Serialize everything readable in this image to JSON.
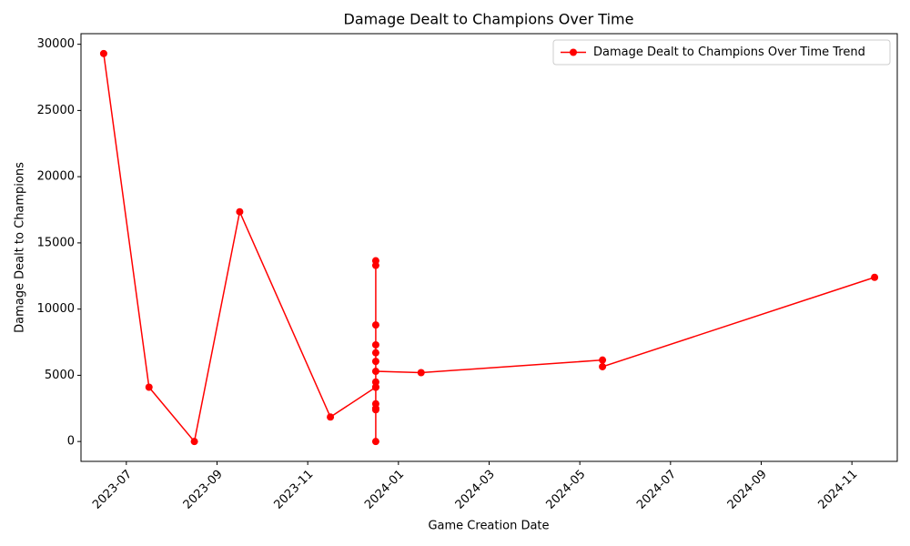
{
  "chart_data": {
    "type": "line",
    "title": "Damage Dealt to Champions Over Time",
    "x_label": "Game Creation Date",
    "y_label": "Damage Dealt to Champions",
    "x": [
      "2023-06",
      "2023-07",
      "2023-08",
      "2023-09",
      "2023-11",
      "2023-12",
      "2023-12",
      "2023-12",
      "2023-12",
      "2023-12",
      "2023-12",
      "2023-12",
      "2023-12",
      "2023-12",
      "2023-12",
      "2023-12",
      "2023-12",
      "2023-12",
      "2023-12",
      "2024-01",
      "2024-05",
      "2024-05",
      "2024-11"
    ],
    "series": [
      {
        "name": "Damage Dealt to Champions Over Time Trend",
        "color": "#ff0000",
        "values": [
          29300,
          4100,
          0,
          17350,
          1850,
          4100,
          6700,
          8800,
          0,
          4500,
          4100,
          7300,
          2500,
          2850,
          2400,
          13300,
          6050,
          13650,
          5300,
          5200,
          6150,
          5650,
          12400
        ]
      }
    ],
    "xlim": [
      "2023-06",
      "2024-12"
    ],
    "xticks": [
      "2023-07",
      "2023-09",
      "2023-11",
      "2024-01",
      "2024-03",
      "2024-05",
      "2024-07",
      "2024-09",
      "2024-11"
    ],
    "ylim": [
      -1500,
      30800
    ],
    "yticks": [
      0,
      5000,
      10000,
      15000,
      20000,
      25000,
      30000
    ],
    "legend": "upper right",
    "grid": false
  }
}
